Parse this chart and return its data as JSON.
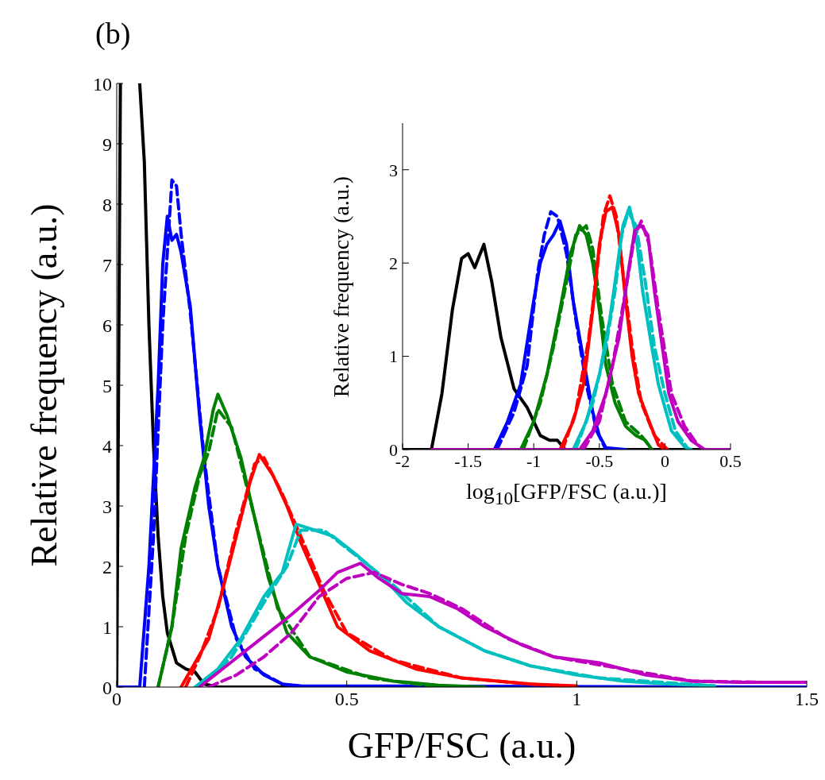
{
  "chart_data": [
    {
      "type": "line",
      "title": "(b)",
      "xlabel": "GFP/FSC (a.u.)",
      "ylabel": "Relative frequency (a.u.)",
      "xlim": [
        0,
        1.5
      ],
      "ylim": [
        0,
        10
      ],
      "xticks": [
        0,
        0.5,
        1,
        1.5
      ],
      "yticks": [
        0,
        1,
        2,
        3,
        4,
        5,
        6,
        7,
        8,
        9,
        10
      ],
      "grid": false,
      "legend": false,
      "series": [
        {
          "color": "#000000",
          "line_style": "solid",
          "x": [
            0,
            0.008,
            0.03,
            0.05,
            0.06,
            0.07,
            0.08,
            0.09,
            0.1,
            0.11,
            0.13,
            0.15,
            0.17,
            0.19,
            0.22,
            1.5
          ],
          "values": [
            0,
            10,
            null,
            10,
            8.7,
            6,
            4,
            2.5,
            1.5,
            0.9,
            0.4,
            0.3,
            0.25,
            0.05,
            0,
            0
          ]
        },
        {
          "color": "#0000ff",
          "line_style": "solid",
          "x": [
            0,
            0.05,
            0.07,
            0.09,
            0.1,
            0.11,
            0.12,
            0.13,
            0.14,
            0.16,
            0.18,
            0.2,
            0.22,
            0.25,
            0.28,
            0.32,
            0.36,
            0.4,
            1.5
          ],
          "values": [
            0,
            0,
            2,
            5,
            7,
            7.8,
            7.4,
            7.5,
            7.2,
            6.3,
            4.5,
            3,
            2,
            1,
            0.5,
            0.2,
            0.05,
            0.02,
            0
          ]
        },
        {
          "color": "#0000ff",
          "line_style": "dashed",
          "x": [
            0.06,
            0.08,
            0.1,
            0.12,
            0.13,
            0.14,
            0.16,
            0.19,
            0.22,
            0.26,
            0.3,
            0.36,
            0.4
          ],
          "values": [
            0,
            2.5,
            6,
            8.4,
            8.3,
            7.5,
            6.2,
            3.8,
            2,
            0.8,
            0.3,
            0.05,
            0
          ]
        },
        {
          "color": "#008000",
          "line_style": "solid",
          "x": [
            0.09,
            0.12,
            0.14,
            0.17,
            0.19,
            0.21,
            0.22,
            0.24,
            0.27,
            0.3,
            0.33,
            0.37,
            0.42,
            0.5,
            0.6,
            0.7,
            0.8
          ],
          "values": [
            0,
            1,
            2.3,
            3.3,
            3.8,
            4.6,
            4.85,
            4.5,
            3.8,
            2.8,
            1.8,
            0.9,
            0.5,
            0.25,
            0.1,
            0.03,
            0
          ]
        },
        {
          "color": "#008000",
          "line_style": "dashed",
          "x": [
            0.09,
            0.12,
            0.15,
            0.18,
            0.2,
            0.22,
            0.25,
            0.3,
            0.35,
            0.42,
            0.55,
            0.7
          ],
          "values": [
            0,
            1,
            2.5,
            3.5,
            3.9,
            4.6,
            4.3,
            2.8,
            1.3,
            0.5,
            0.15,
            0
          ]
        },
        {
          "color": "#ff0000",
          "line_style": "solid",
          "x": [
            0.14,
            0.17,
            0.2,
            0.23,
            0.26,
            0.29,
            0.31,
            0.34,
            0.37,
            0.4,
            0.44,
            0.48,
            0.55,
            0.65,
            0.75,
            0.9,
            1.0
          ],
          "values": [
            0,
            0.4,
            0.8,
            1.6,
            2.5,
            3.4,
            3.85,
            3.5,
            3,
            2.4,
            1.7,
            1,
            0.6,
            0.3,
            0.15,
            0.05,
            0.02
          ]
        },
        {
          "color": "#ff0000",
          "line_style": "dashed",
          "x": [
            0.15,
            0.18,
            0.22,
            0.26,
            0.3,
            0.32,
            0.36,
            0.4,
            0.45,
            0.5,
            0.6,
            0.75,
            0.9,
            1.0
          ],
          "values": [
            0,
            0.5,
            1.3,
            2.6,
            3.7,
            3.8,
            3.2,
            2.5,
            1.6,
            0.9,
            0.45,
            0.15,
            0.05,
            0
          ]
        },
        {
          "color": "#00bfbf",
          "line_style": "solid",
          "x": [
            0.17,
            0.22,
            0.27,
            0.32,
            0.36,
            0.39,
            0.43,
            0.47,
            0.52,
            0.58,
            0.63,
            0.7,
            0.8,
            0.9,
            1.0,
            1.1,
            1.2,
            1.3
          ],
          "values": [
            0,
            0.3,
            0.8,
            1.5,
            1.9,
            2.7,
            2.6,
            2.5,
            2.2,
            1.8,
            1.4,
            1,
            0.6,
            0.35,
            0.2,
            0.1,
            0.05,
            0.02
          ]
        },
        {
          "color": "#00bfbf",
          "line_style": "dashed",
          "x": [
            0.18,
            0.25,
            0.32,
            0.37,
            0.4,
            0.45,
            0.5,
            0.6,
            0.7,
            0.8,
            0.9,
            1.05,
            1.3
          ],
          "values": [
            0,
            0.5,
            1.4,
            2,
            2.6,
            2.6,
            2.3,
            1.7,
            1,
            0.6,
            0.35,
            0.15,
            0.02
          ]
        },
        {
          "color": "#bf00bf",
          "line_style": "solid",
          "x": [
            0.18,
            0.23,
            0.28,
            0.33,
            0.38,
            0.44,
            0.48,
            0.53,
            0.57,
            0.62,
            0.68,
            0.74,
            0.8,
            0.88,
            0.95,
            1.05,
            1.15,
            1.25,
            1.35,
            1.5
          ],
          "values": [
            0,
            0.3,
            0.6,
            0.9,
            1.2,
            1.6,
            1.9,
            2.05,
            1.8,
            1.55,
            1.5,
            1.3,
            1,
            0.7,
            0.5,
            0.4,
            0.2,
            0.1,
            0.08,
            0.08
          ]
        },
        {
          "color": "#bf00bf",
          "line_style": "dashed",
          "x": [
            0.2,
            0.26,
            0.32,
            0.38,
            0.44,
            0.5,
            0.56,
            0.62,
            0.68,
            0.75,
            0.85,
            0.95,
            1.1,
            1.25,
            1.4,
            1.5
          ],
          "values": [
            0,
            0.2,
            0.5,
            0.9,
            1.5,
            1.8,
            1.9,
            1.7,
            1.55,
            1.3,
            0.8,
            0.5,
            0.3,
            0.1,
            0.08,
            0.08
          ]
        }
      ]
    },
    {
      "type": "line",
      "xlabel": "log$_{10}$[GFP/FSC (a.u.)]",
      "ylabel": "Relative frequency (a.u.)",
      "xlim": [
        -2,
        0.5
      ],
      "ylim": [
        0,
        3.5
      ],
      "xticks": [
        -2,
        -1.5,
        -1,
        -0.5,
        0,
        0.5
      ],
      "yticks": [
        0,
        1,
        2,
        3
      ],
      "grid": false,
      "legend": false,
      "series": [
        {
          "color": "#000000",
          "line_style": "solid",
          "x": [
            -2,
            -1.78,
            -1.7,
            -1.62,
            -1.55,
            -1.5,
            -1.45,
            -1.38,
            -1.32,
            -1.25,
            -1.15,
            -1.05,
            -0.95,
            -0.88,
            -0.82,
            -0.76,
            0.5
          ],
          "values": [
            0,
            0,
            0.6,
            1.5,
            2.05,
            2.1,
            1.95,
            2.2,
            1.8,
            1.2,
            0.65,
            0.45,
            0.15,
            0.1,
            0.1,
            0,
            0
          ]
        },
        {
          "color": "#0000ff",
          "line_style": "solid",
          "x": [
            -1.3,
            -1.2,
            -1.1,
            -1,
            -0.95,
            -0.9,
            -0.85,
            -0.8,
            -0.75,
            -0.7,
            -0.65,
            -0.6,
            -0.55,
            -0.5,
            -0.45,
            -0.3
          ],
          "values": [
            0,
            0.3,
            0.7,
            1.6,
            2,
            2.2,
            2.3,
            2.45,
            2.2,
            1.6,
            1.2,
            0.8,
            0.4,
            0.15,
            0.02,
            0
          ]
        },
        {
          "color": "#0000ff",
          "line_style": "dashed",
          "x": [
            -1.28,
            -1.15,
            -1.05,
            -0.97,
            -0.92,
            -0.87,
            -0.82,
            -0.75,
            -0.68,
            -0.6,
            -0.52,
            -0.45
          ],
          "values": [
            0,
            0.4,
            0.9,
            1.9,
            2.3,
            2.55,
            2.5,
            2.1,
            1.4,
            0.7,
            0.2,
            0
          ]
        },
        {
          "color": "#008000",
          "line_style": "solid",
          "x": [
            -1.1,
            -1,
            -0.9,
            -0.8,
            -0.72,
            -0.65,
            -0.6,
            -0.55,
            -0.5,
            -0.45,
            -0.38,
            -0.3,
            -0.22,
            -0.15,
            -0.1
          ],
          "values": [
            0,
            0.3,
            0.8,
            1.5,
            2.1,
            2.4,
            2.3,
            2,
            1.5,
            0.9,
            0.5,
            0.25,
            0.15,
            0.1,
            0
          ]
        },
        {
          "color": "#008000",
          "line_style": "dashed",
          "x": [
            -1.08,
            -0.95,
            -0.85,
            -0.75,
            -0.68,
            -0.6,
            -0.55,
            -0.48,
            -0.4,
            -0.3,
            -0.18,
            -0.1
          ],
          "values": [
            0,
            0.5,
            1.1,
            1.8,
            2.3,
            2.4,
            2.15,
            1.4,
            0.7,
            0.3,
            0.15,
            0
          ]
        },
        {
          "color": "#ff0000",
          "line_style": "solid",
          "x": [
            -0.8,
            -0.7,
            -0.62,
            -0.55,
            -0.5,
            -0.45,
            -0.4,
            -0.35,
            -0.3,
            -0.25,
            -0.2,
            -0.12,
            -0.05,
            0
          ],
          "values": [
            0,
            0.3,
            0.7,
            1.5,
            2.2,
            2.55,
            2.6,
            2.3,
            1.6,
            1,
            0.6,
            0.3,
            0.05,
            0
          ]
        },
        {
          "color": "#ff0000",
          "line_style": "dashed",
          "x": [
            -0.78,
            -0.68,
            -0.58,
            -0.52,
            -0.47,
            -0.42,
            -0.37,
            -0.32,
            -0.25,
            -0.18,
            -0.08,
            0.02
          ],
          "values": [
            0,
            0.4,
            1.2,
            1.9,
            2.5,
            2.72,
            2.5,
            1.9,
            1.1,
            0.5,
            0.15,
            0
          ]
        },
        {
          "color": "#00bfbf",
          "line_style": "solid",
          "x": [
            -0.7,
            -0.6,
            -0.5,
            -0.42,
            -0.37,
            -0.32,
            -0.27,
            -0.22,
            -0.17,
            -0.1,
            -0.05,
            0.05,
            0.15,
            0.2
          ],
          "values": [
            0,
            0.3,
            0.8,
            1.4,
            1.9,
            2.4,
            2.6,
            2.3,
            1.7,
            1.1,
            0.7,
            0.2,
            0.03,
            0
          ]
        },
        {
          "color": "#00bfbf",
          "line_style": "dashed",
          "x": [
            -0.68,
            -0.55,
            -0.45,
            -0.38,
            -0.33,
            -0.28,
            -0.22,
            -0.15,
            -0.08,
            0,
            0.08,
            0.18
          ],
          "values": [
            0,
            0.5,
            1.1,
            1.7,
            2.3,
            2.55,
            2.4,
            1.8,
            1.1,
            0.6,
            0.2,
            0
          ]
        },
        {
          "color": "#bf00bf",
          "line_style": "solid",
          "x": [
            -1.78,
            -0.65,
            -0.55,
            -0.45,
            -0.35,
            -0.28,
            -0.23,
            -0.18,
            -0.13,
            -0.08,
            -0.03,
            0.03,
            0.1,
            0.2,
            0.28,
            0.3,
            0.5
          ],
          "values": [
            0,
            0,
            0.2,
            0.6,
            1.2,
            1.9,
            2.35,
            2.4,
            2.3,
            1.7,
            1.2,
            0.6,
            0.3,
            0.1,
            0.02,
            0,
            0
          ]
        },
        {
          "color": "#bf00bf",
          "line_style": "dashed",
          "x": [
            -0.62,
            -0.5,
            -0.4,
            -0.3,
            -0.23,
            -0.18,
            -0.12,
            -0.05,
            0.05,
            0.15,
            0.25,
            0.3
          ],
          "values": [
            0,
            0.3,
            0.9,
            1.7,
            2.3,
            2.45,
            2.2,
            1.5,
            0.6,
            0.25,
            0.05,
            0
          ]
        }
      ]
    }
  ]
}
